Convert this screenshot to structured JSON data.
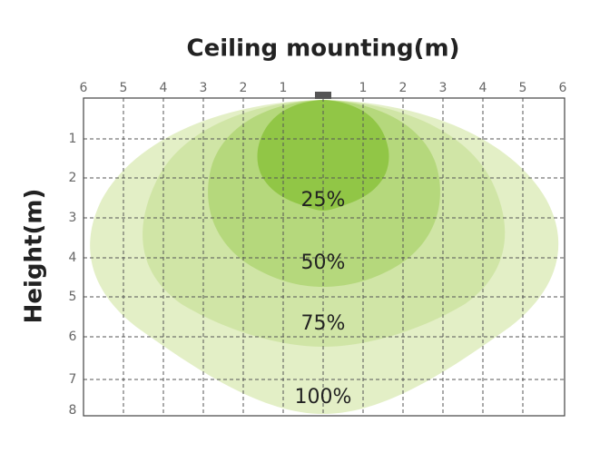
{
  "title": "Ceiling mounting(m)",
  "y_axis_label": "Height(m)",
  "x_tick_labels": [
    "6",
    "5",
    "4",
    "3",
    "2",
    "1",
    "1",
    "2",
    "3",
    "4",
    "5",
    "6"
  ],
  "y_tick_labels": [
    "1",
    "2",
    "3",
    "4",
    "5",
    "6",
    "7",
    "8"
  ],
  "zones": [
    "25%",
    "50%",
    "75%",
    "100%"
  ]
}
